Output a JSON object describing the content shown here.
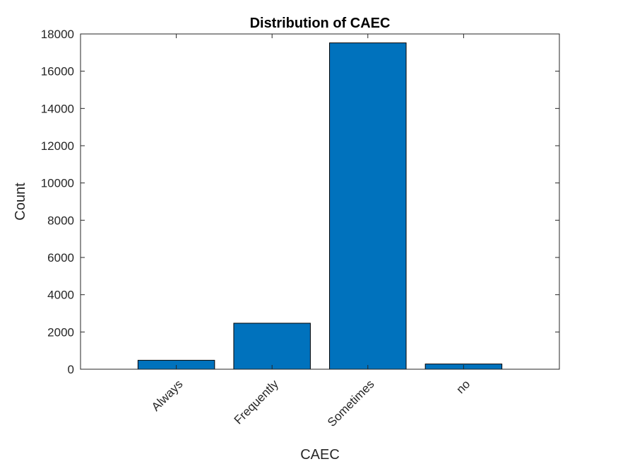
{
  "chart_data": {
    "type": "bar",
    "title": "Distribution of CAEC",
    "xlabel": "CAEC",
    "ylabel": "Count",
    "categories": [
      "Always",
      "Frequently",
      "Sometimes",
      "no"
    ],
    "values": [
      480,
      2470,
      17520,
      280
    ],
    "ylim": [
      0,
      18000
    ],
    "yticks": [
      0,
      2000,
      4000,
      6000,
      8000,
      10000,
      12000,
      14000,
      16000,
      18000
    ],
    "ytick_labels": [
      "0",
      "2000",
      "4000",
      "6000",
      "8000",
      "10000",
      "12000",
      "14000",
      "16000",
      "18000"
    ],
    "grid": false,
    "bar_color": "#0072BD",
    "edge_color": "#000000",
    "axis_color": "#262626"
  }
}
